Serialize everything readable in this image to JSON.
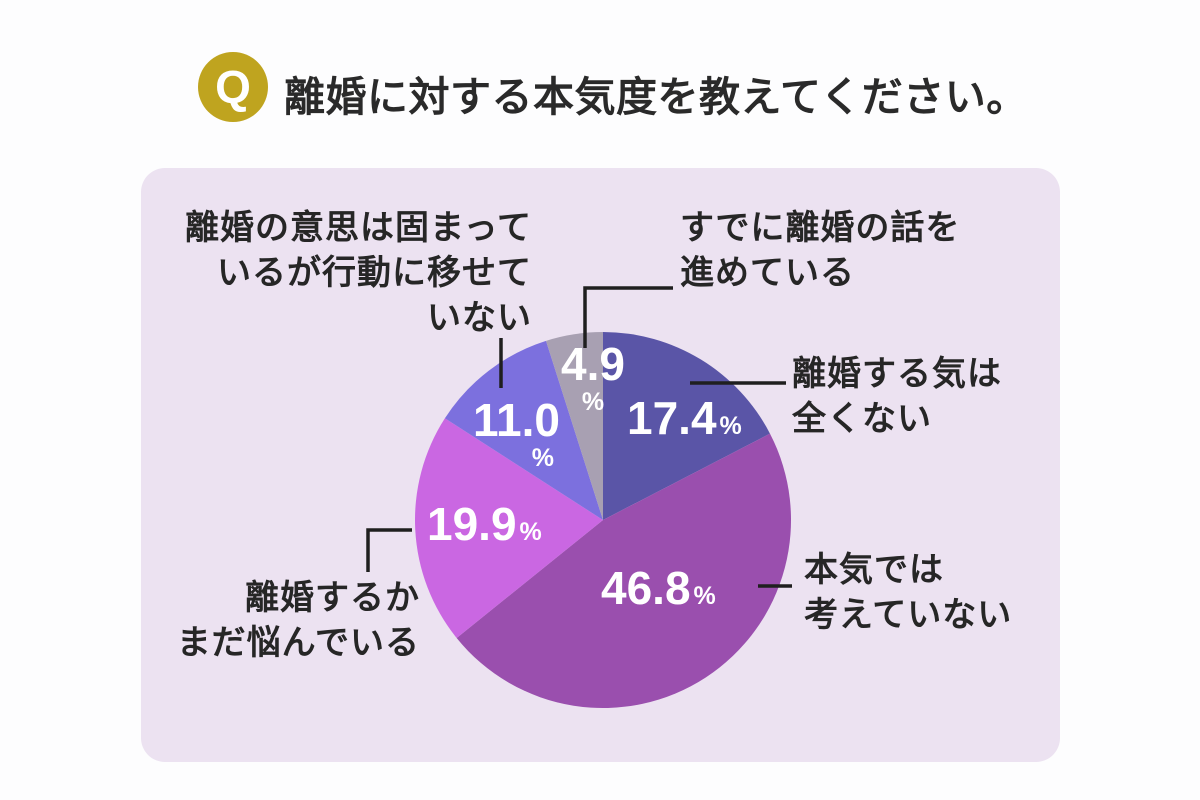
{
  "page": {
    "question_badge": "Q",
    "title": "離婚に対する本気度を教えてください。"
  },
  "colors": {
    "badge_gold": "#bfa41f",
    "card_background": "#ece2f1",
    "title_text": "#2a2a2a",
    "callout_text": "#262626",
    "percent_text": "#ffffff",
    "connector_line": "#1f1f1f"
  },
  "chart_data": {
    "type": "pie",
    "title": "離婚に対する本気度を教えてください。",
    "unit": "%",
    "start_angle_deg": 0,
    "direction": "clockwise",
    "legend_position": "callout-labels",
    "percent_symbol": "%",
    "slices": [
      {
        "label": "離婚する気は全くない",
        "label_lines": [
          "離婚する気は",
          "全くない"
        ],
        "value": 17.4,
        "value_label": "17.4",
        "color": "#5a55a7"
      },
      {
        "label": "本気では考えていない",
        "label_lines": [
          "本気では",
          "考えていない"
        ],
        "value": 46.8,
        "value_label": "46.8",
        "color": "#9a4fae"
      },
      {
        "label": "離婚するかまだ悩んでいる",
        "label_lines": [
          "離婚するか",
          "まだ悩んでいる"
        ],
        "value": 19.9,
        "value_label": "19.9",
        "color": "#ca67e2"
      },
      {
        "label": "離婚の意思は固まっているが行動に移せていない",
        "label_lines": [
          "離婚の意思は固まって",
          "いるが行動に移せて",
          "いない"
        ],
        "value": 11.0,
        "value_label": "11.0",
        "color": "#7c70de"
      },
      {
        "label": "すでに離婚の話を進めている",
        "label_lines": [
          "すでに離婚の話を",
          "進めている"
        ],
        "value": 4.9,
        "value_label": "4.9",
        "color": "#a8a0b2"
      }
    ]
  }
}
